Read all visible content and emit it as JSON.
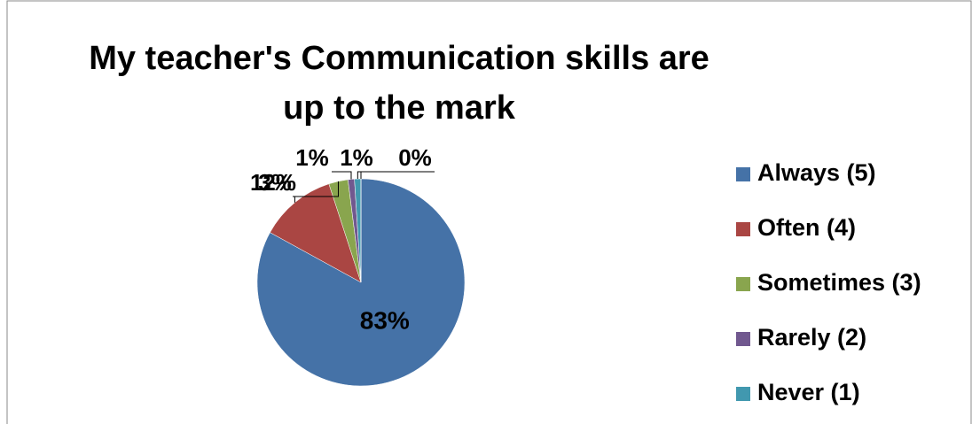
{
  "chart_data": {
    "type": "pie",
    "title": "My teacher's Communication skills are up to the mark",
    "categories": [
      "Always (5)",
      "Often (4)",
      "Sometimes (3)",
      "Rarely (2)",
      "Never (1)",
      null
    ],
    "values": [
      83,
      12,
      3,
      1,
      1,
      0
    ],
    "value_labels": [
      "83%",
      "12%",
      "3%",
      "1%",
      "1%",
      "0%"
    ],
    "colors": [
      "#4572a7",
      "#aa4643",
      "#89a54e",
      "#71588f",
      "#4198af",
      "#db843d"
    ],
    "legend": "right"
  }
}
